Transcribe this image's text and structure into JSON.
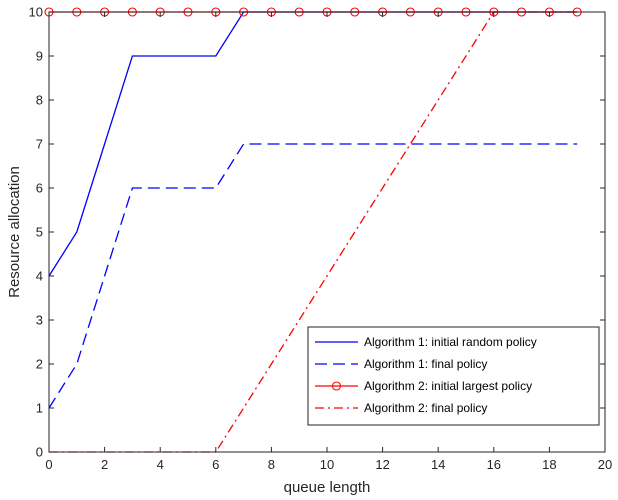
{
  "chart_data": {
    "type": "line",
    "xlabel": "queue length",
    "ylabel": "Resource allocation",
    "xlim": [
      0,
      20
    ],
    "ylim": [
      0,
      10
    ],
    "xticks": [
      0,
      2,
      4,
      6,
      8,
      10,
      12,
      14,
      16,
      18,
      20
    ],
    "yticks": [
      0,
      1,
      2,
      3,
      4,
      5,
      6,
      7,
      8,
      9,
      10
    ],
    "grid": false,
    "legend_position": "bottom-right",
    "x": [
      0,
      1,
      2,
      3,
      4,
      5,
      6,
      7,
      8,
      9,
      10,
      11,
      12,
      13,
      14,
      15,
      16,
      17,
      18,
      19
    ],
    "series": [
      {
        "name": "Algorithm 1: initial random policy",
        "color": "#0000ff",
        "style": "solid",
        "marker": "none",
        "values": [
          4,
          5,
          7,
          9,
          9,
          9,
          9,
          10,
          10,
          10,
          10,
          10,
          10,
          10,
          10,
          10,
          10,
          10,
          10,
          10
        ]
      },
      {
        "name": "Algorithm 1: final policy",
        "color": "#0000ff",
        "style": "dashed",
        "marker": "none",
        "values": [
          1,
          2,
          4,
          6,
          6,
          6,
          6,
          7,
          7,
          7,
          7,
          7,
          7,
          7,
          7,
          7,
          7,
          7,
          7,
          7
        ]
      },
      {
        "name": "Algorithm 2: initial largest policy",
        "color": "#ff0000",
        "style": "solid",
        "marker": "circle",
        "values": [
          10,
          10,
          10,
          10,
          10,
          10,
          10,
          10,
          10,
          10,
          10,
          10,
          10,
          10,
          10,
          10,
          10,
          10,
          10,
          10
        ]
      },
      {
        "name": "Algorithm 2: final policy",
        "color": "#ff0000",
        "style": "dashdot",
        "marker": "none",
        "values": [
          0,
          0,
          0,
          0,
          0,
          0,
          0,
          1,
          2,
          3,
          4,
          5,
          6,
          7,
          8,
          9,
          10,
          10,
          10,
          10
        ]
      }
    ]
  }
}
